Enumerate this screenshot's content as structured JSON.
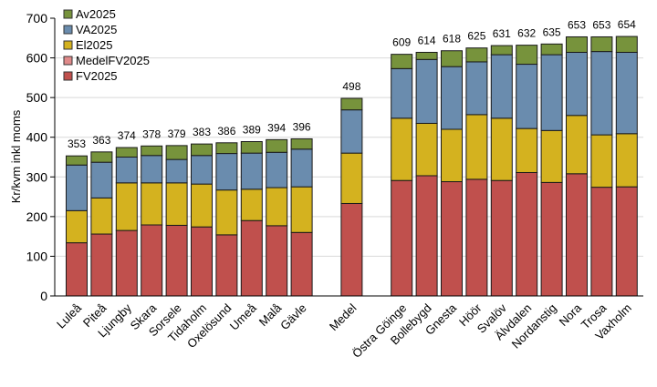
{
  "chart_data": {
    "type": "bar",
    "stacked": true,
    "title": "",
    "xlabel": "",
    "ylabel": "Kr/kvm inkl moms",
    "ylim": [
      0,
      700
    ],
    "yticks": [
      0,
      100,
      200,
      300,
      400,
      500,
      600,
      700
    ],
    "grid": true,
    "legend_position": "top-left",
    "categories": [
      "Luleå",
      "Piteå",
      "Ljungby",
      "Skara",
      "Sorsele",
      "Tidaholm",
      "Oxelösund",
      "Umeå",
      "Malå",
      "Gävle",
      "Medel",
      "Östra Göinge",
      "Bollebygd",
      "Gnesta",
      "Höör",
      "Svalöv",
      "Älvdalen",
      "Nordanstig",
      "Nora",
      "Trosa",
      "Vaxholm"
    ],
    "totals": [
      353,
      363,
      374,
      378,
      379,
      383,
      386,
      389,
      394,
      396,
      498,
      609,
      614,
      618,
      625,
      631,
      632,
      635,
      653,
      653,
      654
    ],
    "series": [
      {
        "name": "FV2025",
        "color": "#c0504d",
        "values": [
          134,
          156,
          165,
          179,
          178,
          174,
          154,
          190,
          177,
          160,
          233,
          291,
          303,
          288,
          294,
          291,
          311,
          286,
          308,
          274,
          275
        ]
      },
      {
        "name": "MedelFV2025",
        "color": "#e08a8a",
        "values": [
          0,
          0,
          0,
          0,
          0,
          0,
          0,
          0,
          0,
          0,
          0,
          0,
          0,
          0,
          0,
          0,
          0,
          0,
          0,
          0,
          0
        ]
      },
      {
        "name": "El2025",
        "color": "#d4b21f",
        "values": [
          81,
          91,
          120,
          106,
          107,
          108,
          113,
          79,
          96,
          115,
          127,
          157,
          132,
          132,
          163,
          157,
          111,
          131,
          147,
          132,
          134
        ]
      },
      {
        "name": "VA2025",
        "color": "#6a8cae",
        "values": [
          115,
          90,
          65,
          69,
          59,
          72,
          92,
          91,
          89,
          95,
          109,
          125,
          161,
          158,
          133,
          160,
          162,
          191,
          159,
          210,
          205
        ]
      },
      {
        "name": "Av2025",
        "color": "#77933c",
        "values": [
          23,
          26,
          24,
          24,
          35,
          29,
          27,
          29,
          32,
          26,
          29,
          36,
          18,
          40,
          35,
          23,
          48,
          27,
          39,
          37,
          40
        ]
      }
    ],
    "legend_order": [
      "Av2025",
      "VA2025",
      "El2025",
      "MedelFV2025",
      "FV2025"
    ]
  }
}
